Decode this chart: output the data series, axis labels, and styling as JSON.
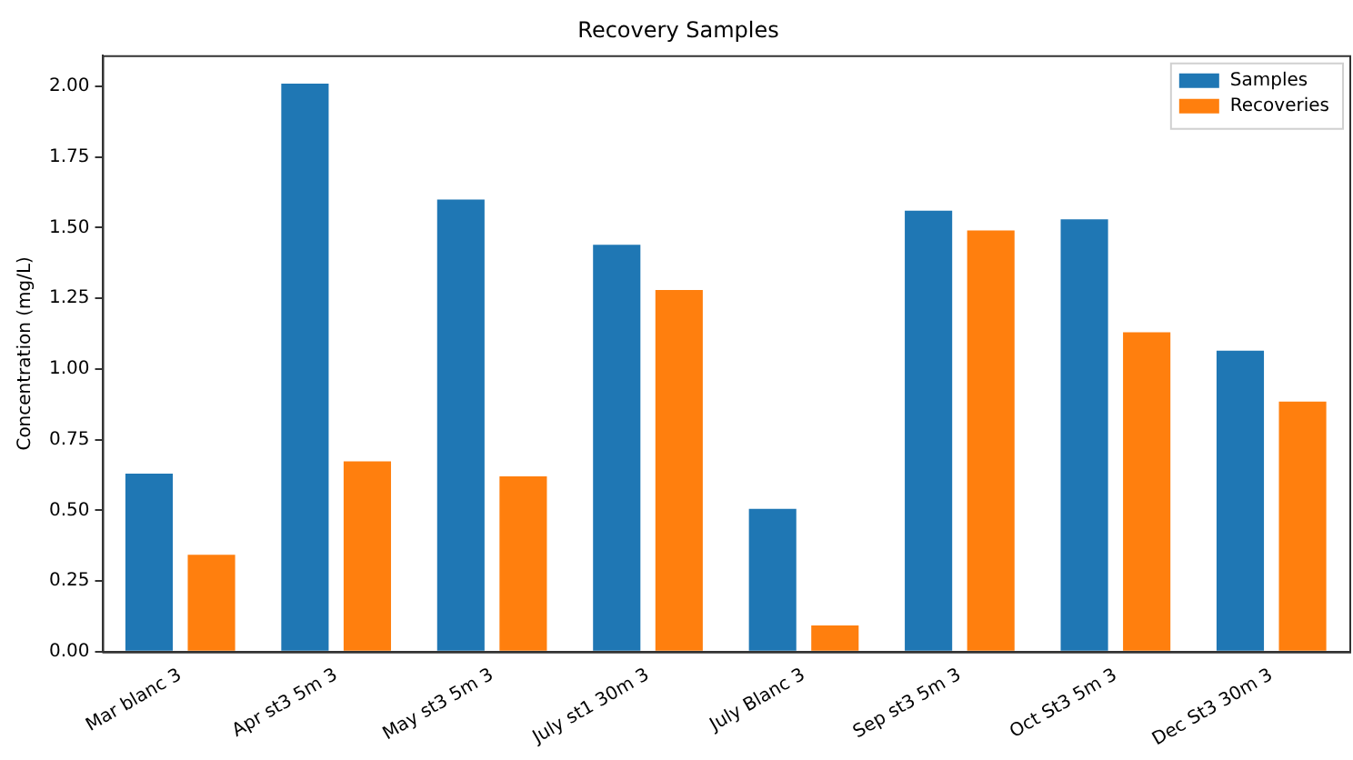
{
  "chart_data": {
    "type": "bar",
    "title": "Recovery Samples",
    "ylabel": "Concentration (mg/L)",
    "categories": [
      "Mar blanc 3",
      "Apr st3 5m 3",
      "May st3 5m 3",
      "July st1 30m 3",
      "July Blanc 3",
      "Sep st3 5m 3",
      "Oct St3 5m 3",
      "Dec St3 30m 3"
    ],
    "series": [
      {
        "name": "Samples",
        "color": "#1f77b4",
        "values": [
          0.63,
          2.01,
          1.6,
          1.44,
          0.505,
          1.56,
          1.53,
          1.065
        ]
      },
      {
        "name": "Recoveries",
        "color": "#ff7f0e",
        "values": [
          0.343,
          0.673,
          0.62,
          1.28,
          0.093,
          1.49,
          1.13,
          0.885
        ]
      }
    ],
    "ylim": [
      0,
      2.11
    ],
    "yticks": [
      {
        "value": 0,
        "label": "0.00"
      },
      {
        "value": 0.25,
        "label": "0.25"
      },
      {
        "value": 0.5,
        "label": "0.50"
      },
      {
        "value": 0.75,
        "label": "0.75"
      },
      {
        "value": 1,
        "label": "1.00"
      },
      {
        "value": 1.25,
        "label": "1.25"
      },
      {
        "value": 1.5,
        "label": "1.50"
      },
      {
        "value": 1.75,
        "label": "1.75"
      },
      {
        "value": 2,
        "label": "2.00"
      }
    ],
    "grid": false,
    "legend": "top right"
  }
}
